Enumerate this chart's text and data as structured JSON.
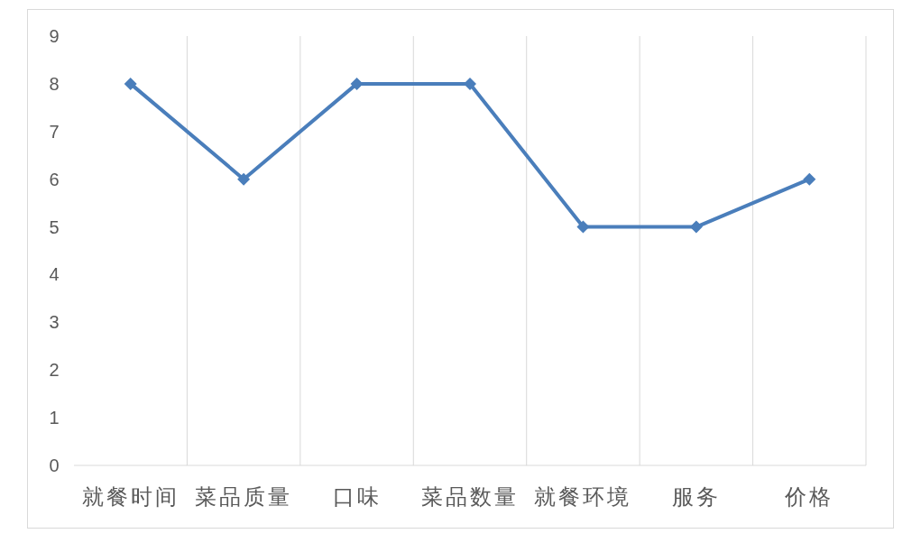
{
  "chart_data": {
    "type": "line",
    "categories": [
      "就餐时间",
      "菜品质量",
      "口味",
      "菜品数量",
      "就餐环境",
      "服务",
      "价格"
    ],
    "series": [
      {
        "color": "#4a7ebb",
        "values": [
          8,
          6,
          8,
          8,
          5,
          5,
          6
        ]
      }
    ],
    "ylim": [
      0,
      9
    ],
    "yticks": [
      0,
      1,
      2,
      3,
      4,
      5,
      6,
      7,
      8,
      9
    ],
    "grid": "x",
    "marker": "diamond",
    "line_style": "solid"
  }
}
